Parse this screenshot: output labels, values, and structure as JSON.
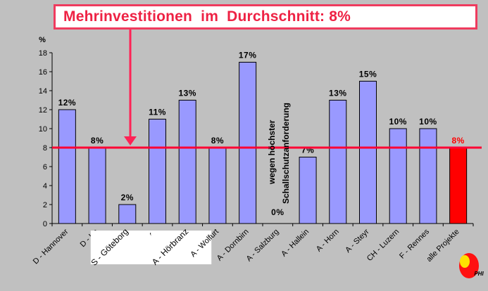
{
  "chart_data": {
    "type": "bar",
    "title": "Mehrinvestitionen  im  Durchschnitt: 8%",
    "ylabel": "%",
    "ylim": [
      0,
      18
    ],
    "yticks": [
      0,
      2,
      4,
      6,
      8,
      10,
      12,
      14,
      16,
      18
    ],
    "grid": false,
    "categories": [
      "D - Hannover",
      "D - Ka",
      "S - Göteborg",
      "A -",
      "A - Hörbranz",
      "A - Wolfurt",
      "A - Dornbirn",
      "A - Salzburg",
      "A - Hallein",
      "A - Horn",
      "A - Steyr",
      "CH - Luzern",
      "F - Rennes",
      "alle Projekte"
    ],
    "values": [
      12,
      8,
      2,
      11,
      13,
      8,
      17,
      0,
      7,
      13,
      15,
      10,
      10,
      8
    ],
    "data_labels": [
      "12%",
      "8%",
      "2%",
      "11%",
      "13%",
      "8%",
      "17%",
      "0%",
      "7%",
      "13%",
      "15%",
      "10%",
      "10%",
      "8%"
    ],
    "highlight_category": "alle Projekte",
    "reference_line": {
      "value": 8
    },
    "annotation": {
      "line1": "wegen  höchster",
      "line2": "Schallschutzanforderung"
    },
    "colors": {
      "bar": "#9999ff",
      "highlight": "#ff0000",
      "reference": "#ff0033",
      "arrow": "#ff2255"
    }
  },
  "logo": {
    "text": "PHI"
  }
}
